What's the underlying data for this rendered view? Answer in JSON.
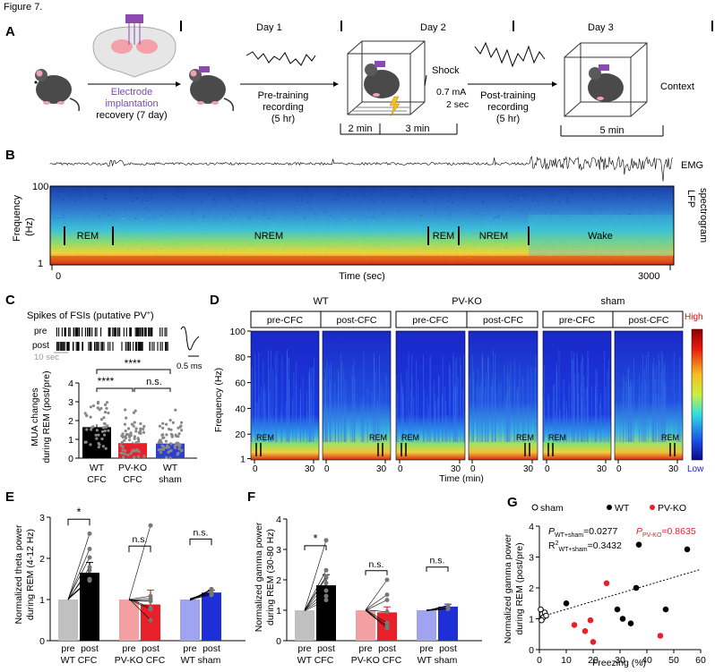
{
  "figure_label": "Figure 7.",
  "panelA": {
    "letter": "A",
    "implant_line1": "Electrode",
    "implant_line2": "implantation",
    "implant_line3": "recovery (7 day)",
    "day1": "Day 1",
    "day2": "Day 2",
    "day3": "Day 3",
    "pre_line1": "Pre-training",
    "pre_line2": "recording",
    "pre_line3": "(5 hr)",
    "shock_title": "Shock",
    "shock_ma": "0.7 mA",
    "shock_sec": "2 sec",
    "min2": "2 min",
    "min3": "3 min",
    "post_line1": "Post-training",
    "post_line2": "recording",
    "post_line3": "(5 hr)",
    "min5": "5 min",
    "context": "Context"
  },
  "panelB": {
    "letter": "B",
    "emg_label": "EMG",
    "lfp_line1": "LFP",
    "lfp_line2": "spectrogram",
    "ylabel": "Frequency",
    "yunit": "(Hz)",
    "ytick_top": "100",
    "ytick_bottom": "1",
    "xlabel": "Time (sec)",
    "xtick_start": "0",
    "xtick_end": "3000",
    "stages": [
      "REM",
      "NREM",
      "REM",
      "NREM",
      "Wake"
    ]
  },
  "panelC": {
    "letter": "C",
    "spikes_title": "Spikes of FSIs (putative PV",
    "spikes_sup": "+",
    "spikes_close": ")",
    "pre": "pre",
    "post": "post",
    "scale_10s": "10 sec",
    "scale_05ms": "0.5 ms",
    "ylabel1": "MUA changes",
    "ylabel2": "during REM (post/pre)",
    "sig_top": "****",
    "sig_left": "****",
    "sig_right": "n.s.",
    "yticks": [
      "0",
      "1",
      "2",
      "3",
      "4"
    ],
    "groups": [
      "WT",
      "PV-KO",
      "WT"
    ],
    "groups2": [
      "CFC",
      "CFC",
      "sham"
    ]
  },
  "panelD": {
    "letter": "D",
    "groups": [
      "WT",
      "PV-KO",
      "sham"
    ],
    "pre_cfc": "pre-CFC",
    "post_cfc": "post-CFC",
    "ylabel": "Frequency (Hz)",
    "yticks": [
      "100",
      "80",
      "60",
      "40",
      "20",
      "1"
    ],
    "xtick0": "0",
    "xtick30": "30",
    "xlabel": "Time (min)",
    "rem": "REM",
    "high": "High",
    "low": "Low"
  },
  "panelE": {
    "letter": "E",
    "ylabel1": "Normalized theta power",
    "ylabel2": "during REM (4-12 Hz)",
    "yticks": [
      "0",
      "1",
      "2",
      "3"
    ],
    "sig": [
      "*",
      "n.s.",
      "n.s."
    ],
    "pre": "pre",
    "post": "post",
    "groups": [
      "WT CFC",
      "PV-KO CFC",
      "WT sham"
    ]
  },
  "panelF": {
    "letter": "F",
    "ylabel1": "Normalized gamma power",
    "ylabel2": "during REM (30-80 Hz)",
    "yticks": [
      "0",
      "1",
      "2",
      "3",
      "4"
    ],
    "sig": [
      "*",
      "n.s.",
      "n.s."
    ],
    "pre": "pre",
    "post": "post",
    "groups": [
      "WT CFC",
      "PV-KO CFC",
      "WT sham"
    ]
  },
  "panelG": {
    "letter": "G",
    "legend_sham": "sham",
    "legend_wt": "WT",
    "legend_pvko": "PV-KO",
    "p_wt": "P",
    "p_wt_sub": "WT+sham",
    "p_wt_val": "=0.0277",
    "r2": "R",
    "r2_sup": "2",
    "r2_sub": "WT+sham",
    "r2_val": "=0.3432",
    "p_pv": "P",
    "p_pv_sub": "PV-KO",
    "p_pv_val": "=0.8635",
    "ylabel1": "Normalized gamma power",
    "ylabel2": "during REM (post/pre)",
    "xlabel": "Freezing (%)",
    "xticks": [
      "0",
      "10",
      "20",
      "30",
      "40",
      "50",
      "60"
    ],
    "yticks": [
      "0",
      "1",
      "2",
      "3",
      "4"
    ]
  },
  "chart_data": [
    {
      "panel": "C",
      "type": "bar",
      "categories": [
        "WT CFC",
        "PV-KO CFC",
        "WT sham"
      ],
      "values": [
        1.65,
        0.8,
        0.78
      ],
      "errors": [
        0.15,
        0.08,
        0.07
      ],
      "colors": [
        "#000000",
        "#e8202a",
        "#2f3fd0"
      ],
      "ylim": [
        0,
        4
      ]
    },
    {
      "panel": "E",
      "type": "bar",
      "categories": [
        "pre",
        "post",
        "pre",
        "post",
        "pre",
        "post"
      ],
      "values": [
        1.0,
        1.65,
        1.0,
        0.88,
        1.0,
        1.17
      ],
      "errors": [
        0,
        0.25,
        0,
        0.35,
        0,
        0.06
      ],
      "colors": [
        "#c0c0c0",
        "#000000",
        "#f4a0a3",
        "#e8202a",
        "#a0a4f0",
        "#1f2fd8"
      ],
      "ylim": [
        0,
        3
      ]
    },
    {
      "panel": "F",
      "type": "bar",
      "categories": [
        "pre",
        "post",
        "pre",
        "post",
        "pre",
        "post"
      ],
      "values": [
        1.0,
        1.82,
        1.0,
        0.93,
        1.0,
        1.12
      ],
      "errors": [
        0,
        0.35,
        0,
        0.18,
        0,
        0.08
      ],
      "colors": [
        "#c0c0c0",
        "#000000",
        "#f4a0a3",
        "#e8202a",
        "#a0a4f0",
        "#1f2fd8"
      ],
      "ylim": [
        0,
        4
      ]
    },
    {
      "panel": "G",
      "type": "scatter",
      "xlim": [
        0,
        60
      ],
      "ylim": [
        0,
        4
      ],
      "series": [
        {
          "name": "sham",
          "x": [
            0.5,
            1,
            1.5,
            2,
            2.5,
            0.8
          ],
          "y": [
            1.3,
            1.15,
            1.05,
            1.2,
            1.1,
            0.95
          ]
        },
        {
          "name": "WT",
          "x": [
            10,
            29,
            31,
            34,
            36,
            37,
            47,
            55
          ],
          "y": [
            1.5,
            1.3,
            1.0,
            0.85,
            2.0,
            3.4,
            1.3,
            3.25
          ]
        },
        {
          "name": "PV-KO",
          "x": [
            13,
            17,
            19,
            20,
            25,
            45
          ],
          "y": [
            0.8,
            0.6,
            0.95,
            0.25,
            2.15,
            0.45
          ]
        }
      ],
      "fit_line": {
        "x": [
          0,
          60
        ],
        "y": [
          1.05,
          2.6
        ]
      }
    }
  ]
}
